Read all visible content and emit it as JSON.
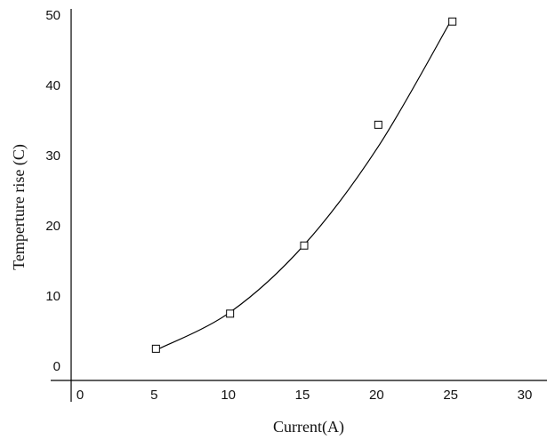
{
  "chart_data": {
    "type": "scatter",
    "title": "",
    "xlabel": "Current(A)",
    "ylabel": "Temperture rise (C)",
    "xlim": [
      0,
      30
    ],
    "ylim": [
      0,
      50
    ],
    "xticks": [
      0,
      5,
      10,
      15,
      20,
      25,
      30
    ],
    "yticks": [
      0,
      10,
      20,
      30,
      40,
      50
    ],
    "grid": false,
    "legend": "none",
    "series": [
      {
        "type": "scatter",
        "marker": "open-square",
        "points": [
          {
            "x": 5.0,
            "y": 3.5
          },
          {
            "x": 10.0,
            "y": 8.5
          },
          {
            "x": 15.0,
            "y": 18.2
          },
          {
            "x": 20.0,
            "y": 35.4
          },
          {
            "x": 25.0,
            "y": 50.1
          }
        ]
      },
      {
        "type": "line",
        "style": "smooth-fit",
        "points": [
          {
            "x": 5.0,
            "y": 3.3
          },
          {
            "x": 10.0,
            "y": 8.7
          },
          {
            "x": 15.0,
            "y": 18.3
          },
          {
            "x": 20.0,
            "y": 32.3
          },
          {
            "x": 25.0,
            "y": 50.6
          }
        ]
      }
    ]
  }
}
